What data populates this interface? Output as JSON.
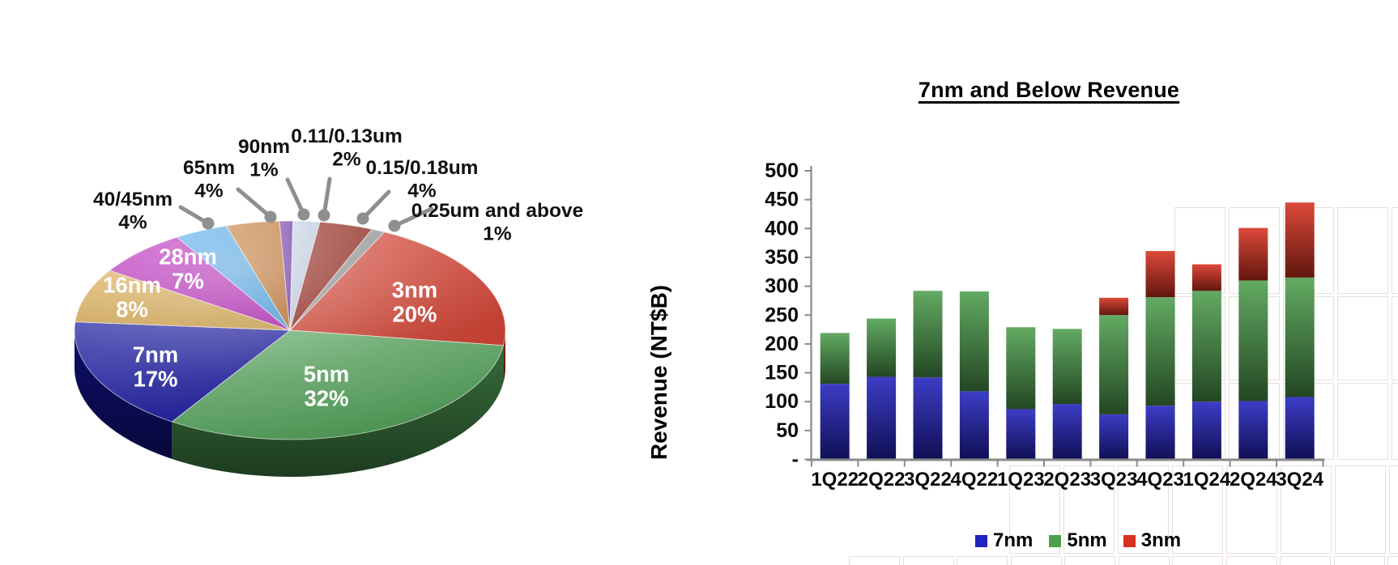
{
  "chart_data": [
    {
      "id": "revenue-by-process-pie",
      "type": "pie",
      "style": "3d",
      "unit": "%",
      "start_angle_deg": 26,
      "labels": [
        "3nm",
        "5nm",
        "7nm",
        "16nm",
        "28nm",
        "40/45nm",
        "65nm",
        "90nm",
        "0.11/0.13um",
        "0.15/0.18um",
        "0.25um and above"
      ],
      "values": [
        20,
        32,
        17,
        8,
        7,
        4,
        4,
        1,
        2,
        4,
        1
      ],
      "value_labels": [
        "20%",
        "32%",
        "17%",
        "8%",
        "7%",
        "4%",
        "4%",
        "1%",
        "2%",
        "4%",
        "1%"
      ],
      "colors": [
        "#D23A2A",
        "#4F9F55",
        "#15159E",
        "#D9A84C",
        "#BA25BC",
        "#4BA5E9",
        "#C4732C",
        "#6A2BA8",
        "#C3CFE6",
        "#8E1B10",
        "#939393"
      ],
      "label_placement": [
        "inside",
        "inside",
        "inside",
        "inside",
        "inside",
        "outside",
        "outside",
        "outside",
        "outside",
        "outside",
        "outside"
      ],
      "leader_color": "#8F8F8F"
    },
    {
      "id": "seven-nm-and-below-revenue",
      "type": "bar",
      "stacked": true,
      "title": "7nm and Below Revenue",
      "ylabel": "Revenue (NT$B)",
      "ylim": [
        0,
        500
      ],
      "ytick_step": 50,
      "zero_tick_label": "-",
      "grid": false,
      "legend_position": "bottom",
      "categories": [
        "1Q22",
        "2Q22",
        "3Q22",
        "4Q22",
        "1Q23",
        "2Q23",
        "3Q23",
        "4Q23",
        "1Q24",
        "2Q24",
        "3Q24"
      ],
      "series": [
        {
          "name": "7nm",
          "color": "#2222BE",
          "values": [
            131,
            143,
            142,
            118,
            87,
            96,
            78,
            93,
            100,
            101,
            108
          ]
        },
        {
          "name": "5nm",
          "color": "#4E9E4E",
          "values": [
            88,
            101,
            150,
            173,
            142,
            130,
            172,
            188,
            192,
            209,
            207
          ]
        },
        {
          "name": "3nm",
          "color": "#D8301F",
          "values": [
            0,
            0,
            0,
            0,
            0,
            0,
            30,
            80,
            46,
            91,
            130
          ]
        }
      ],
      "axis_color": "#8A8A8A"
    }
  ]
}
